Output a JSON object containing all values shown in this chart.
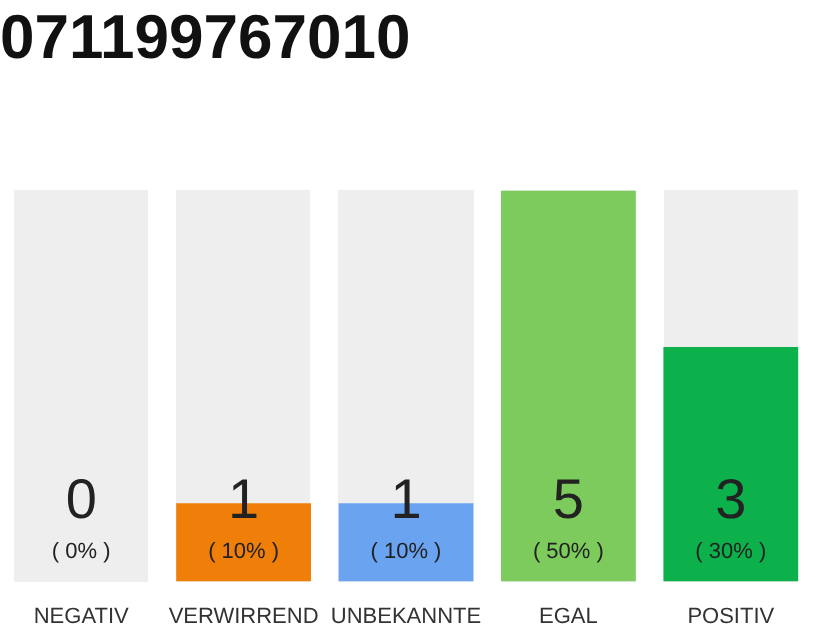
{
  "chart_data": {
    "type": "bar",
    "title": "071199767010",
    "categories": [
      "NEGATIV",
      "VERWIRREND",
      "UNBEKANNTE",
      "EGAL",
      "POSITIV"
    ],
    "values": [
      0,
      10,
      10,
      50,
      30
    ],
    "colors": [
      "#555555",
      "#f07f09",
      "#6aa4f1",
      "#7dcb5c",
      "#0db14b"
    ],
    "value_labels": [
      "( 0% )",
      "( 10% )",
      "( 10% )",
      "( 50% )",
      "( 30% )"
    ],
    "annotations": [
      "0",
      "1",
      "1",
      "5",
      "3"
    ],
    "tick_labels": "x",
    "grid": false,
    "legend": false
  }
}
